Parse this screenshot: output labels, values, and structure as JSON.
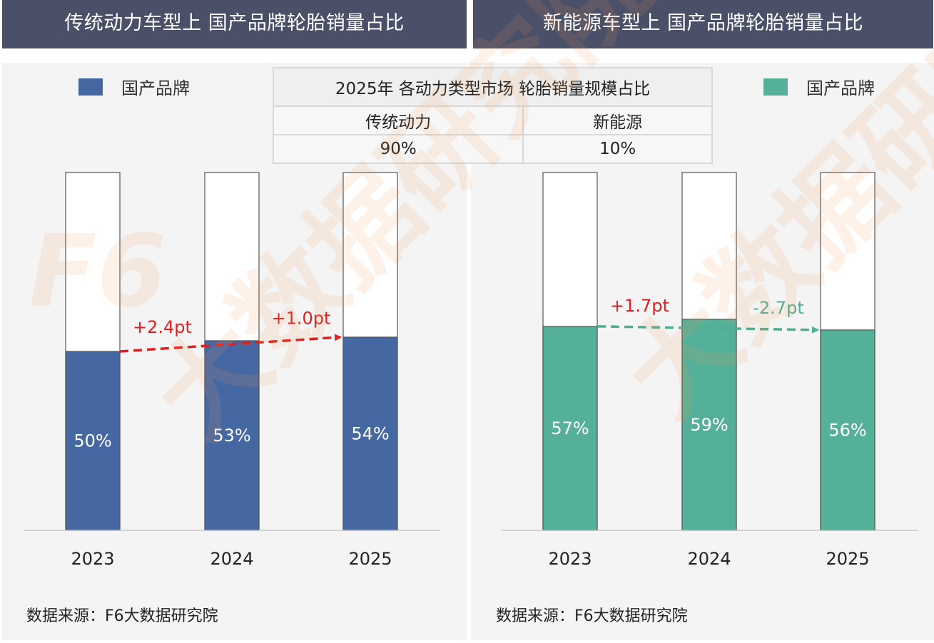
{
  "headers": {
    "left": "传统动力车型上 国产品牌轮胎销量占比",
    "right": "新能源车型上 国产品牌轮胎销量占比"
  },
  "legend": {
    "left_label": "国产品牌",
    "right_label": "国产品牌"
  },
  "summary_table": {
    "title": "2025年 各动力类型市场 轮胎销量规模占比",
    "columns": [
      "传统动力",
      "新能源"
    ],
    "values": [
      "90%",
      "10%"
    ]
  },
  "source": {
    "left": "数据来源：F6大数据研究院",
    "right": "数据来源：F6大数据研究院"
  },
  "watermark_text": "大数据研究院",
  "watermark_logo": "F6",
  "colors": {
    "header_bg": "#4a5068",
    "blue": "#4568a3",
    "green": "#55b09a",
    "red_arrow": "#e02020",
    "green_arrow": "#4fae8f"
  },
  "chart_data": [
    {
      "type": "bar",
      "title": "传统动力车型上 国产品牌轮胎销量占比",
      "categories": [
        "2023",
        "2024",
        "2025"
      ],
      "series": [
        {
          "name": "国产品牌",
          "values": [
            50,
            53,
            54
          ]
        }
      ],
      "value_labels": [
        "50%",
        "53%",
        "54%"
      ],
      "ylim": [
        0,
        100
      ],
      "changes": [
        {
          "from": "2023",
          "to": "2024",
          "label": "+2.4pt"
        },
        {
          "from": "2024",
          "to": "2025",
          "label": "+1.0pt"
        }
      ]
    },
    {
      "type": "bar",
      "title": "新能源车型上 国产品牌轮胎销量占比",
      "categories": [
        "2023",
        "2024",
        "2025"
      ],
      "series": [
        {
          "name": "国产品牌",
          "values": [
            57,
            59,
            56
          ]
        }
      ],
      "value_labels": [
        "57%",
        "59%",
        "56%"
      ],
      "ylim": [
        0,
        100
      ],
      "changes": [
        {
          "from": "2023",
          "to": "2024",
          "label": "+1.7pt"
        },
        {
          "from": "2024",
          "to": "2025",
          "label": "-2.7pt"
        }
      ]
    }
  ]
}
